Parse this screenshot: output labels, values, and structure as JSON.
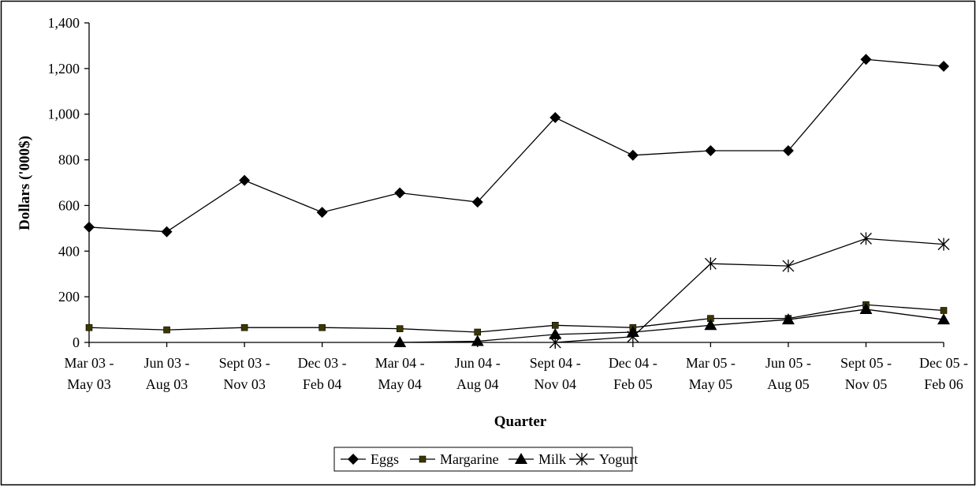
{
  "chart_data": {
    "type": "line",
    "title": "",
    "xlabel": "Quarter",
    "ylabel": "Dollars ('000$)",
    "ylim": [
      0,
      1400
    ],
    "yticks": [
      0,
      200,
      400,
      600,
      800,
      1000,
      1200,
      1400
    ],
    "ytick_labels": [
      "0",
      "200",
      "400",
      "600",
      "800",
      "1,000",
      "1,200",
      "1,400"
    ],
    "categories": [
      [
        "Mar 03 -",
        "May 03"
      ],
      [
        "Jun 03 -",
        "Aug 03"
      ],
      [
        "Sept 03 -",
        "Nov 03"
      ],
      [
        "Dec 03 -",
        "Feb 04"
      ],
      [
        "Mar 04 -",
        "May 04"
      ],
      [
        "Jun 04 -",
        "Aug 04"
      ],
      [
        "Sept 04 -",
        "Nov 04"
      ],
      [
        "Dec 04 -",
        "Feb 05"
      ],
      [
        "Mar 05 -",
        "May 05"
      ],
      [
        "Jun 05 -",
        "Aug 05"
      ],
      [
        "Sept 05 -",
        "Nov 05"
      ],
      [
        "Dec 05 -",
        "Feb 06"
      ]
    ],
    "grid": false,
    "legend_position": "bottom",
    "series": [
      {
        "name": "Eggs",
        "marker": "diamond",
        "values": [
          505,
          485,
          710,
          570,
          655,
          615,
          985,
          820,
          840,
          840,
          1240,
          1210
        ]
      },
      {
        "name": "Margarine",
        "marker": "square",
        "values": [
          65,
          55,
          65,
          65,
          60,
          45,
          75,
          65,
          105,
          105,
          165,
          140
        ]
      },
      {
        "name": "Milk",
        "marker": "triangle",
        "values": [
          null,
          null,
          null,
          null,
          0,
          5,
          35,
          45,
          75,
          100,
          145,
          100
        ]
      },
      {
        "name": "Yogurt",
        "marker": "star",
        "values": [
          null,
          null,
          null,
          null,
          null,
          null,
          0,
          25,
          345,
          335,
          455,
          430
        ]
      }
    ]
  }
}
